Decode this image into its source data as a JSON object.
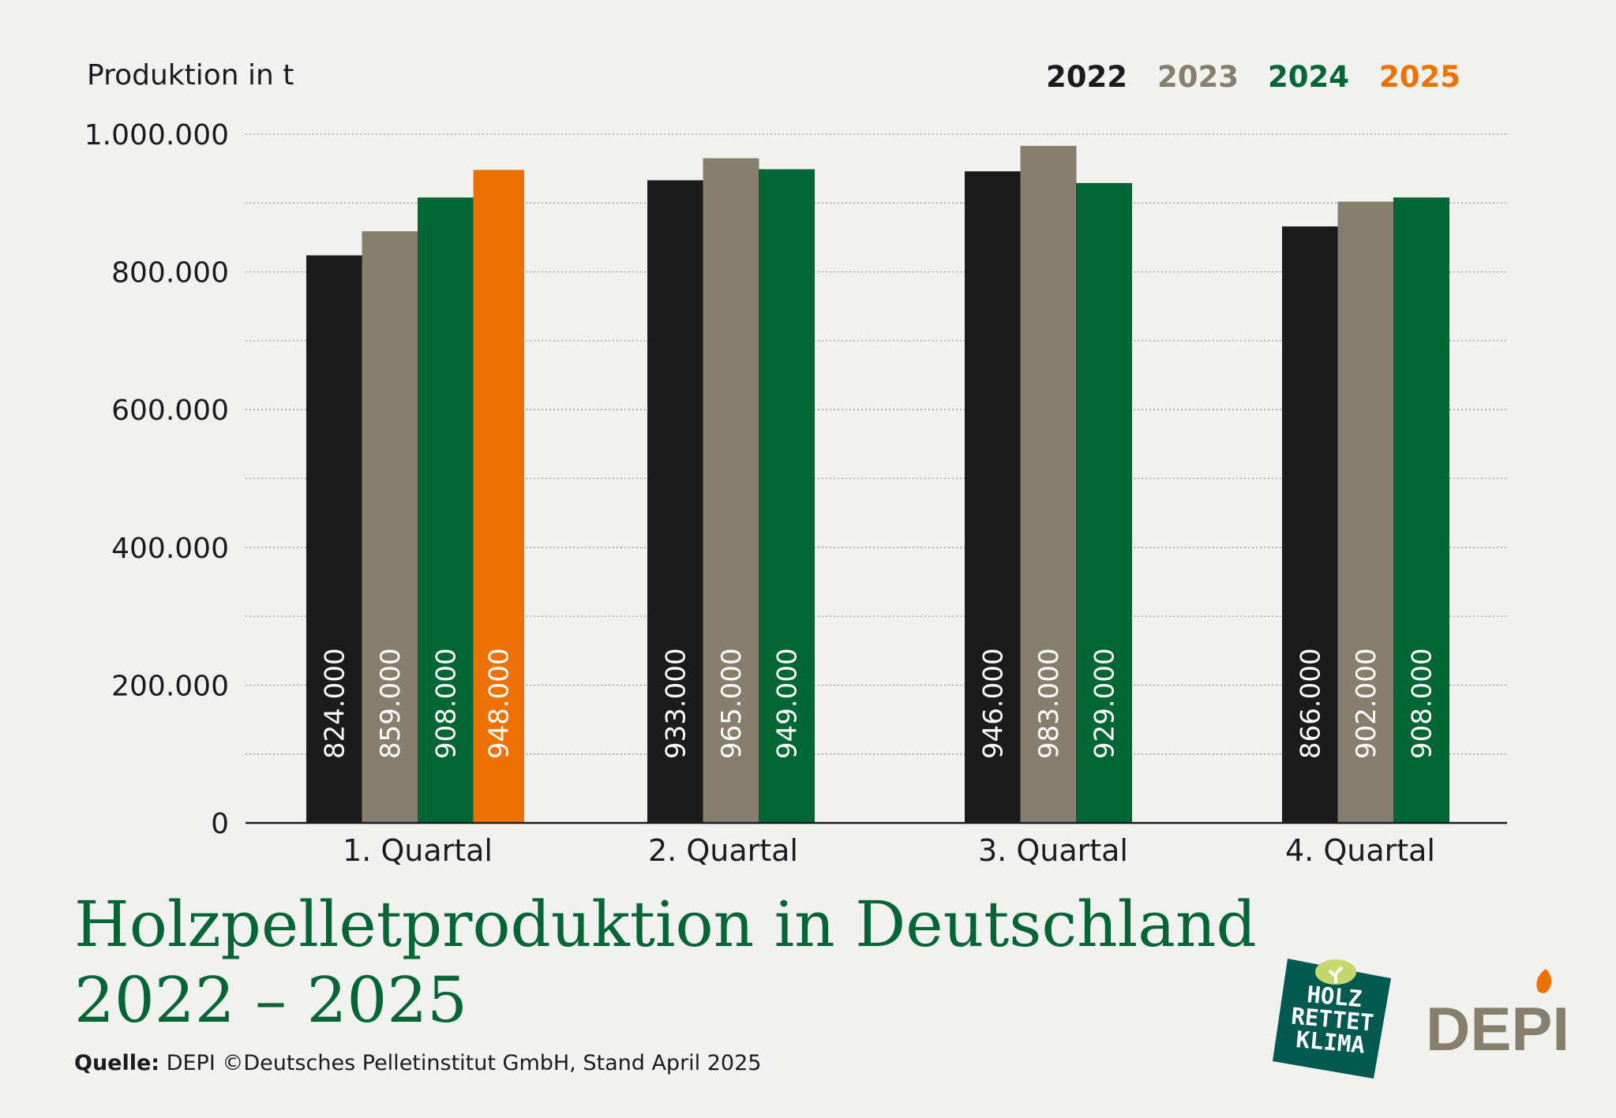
{
  "chart_data": {
    "type": "bar",
    "title": "Holzpelletproduktion in Deutschland",
    "subtitle": "2022 – 2025",
    "ylabel": "Produktion in t",
    "xlabel": "",
    "ylim": [
      0,
      1000000
    ],
    "y_ticks": [
      "0",
      "200.000",
      "400.000",
      "600.000",
      "800.000",
      "1.000.000"
    ],
    "y_tick_values": [
      0,
      200000,
      400000,
      600000,
      800000,
      1000000
    ],
    "grid": "horizontal dotted every 100.000",
    "legend_position": "top-right",
    "categories": [
      "1. Quartal",
      "2. Quartal",
      "3. Quartal",
      "4. Quartal"
    ],
    "series": [
      {
        "name": "2022",
        "color": "#1b1b1b",
        "values": [
          824000,
          933000,
          946000,
          866000
        ],
        "labels": [
          "824.000",
          "933.000",
          "946.000",
          "866.000"
        ]
      },
      {
        "name": "2023",
        "color": "#877f6e",
        "values": [
          859000,
          965000,
          983000,
          902000
        ],
        "labels": [
          "859.000",
          "965.000",
          "983.000",
          "902.000"
        ]
      },
      {
        "name": "2024",
        "color": "#006633",
        "values": [
          908000,
          949000,
          929000,
          908000
        ],
        "labels": [
          "908.000",
          "949.000",
          "929.000",
          "908.000"
        ]
      },
      {
        "name": "2025",
        "color": "#ed7203",
        "values": [
          948000,
          null,
          null,
          null
        ],
        "labels": [
          "948.000",
          null,
          null,
          null
        ]
      }
    ]
  },
  "footer": {
    "source_label": "Quelle:",
    "source_text": " DEPI  ©Deutsches Pelletinstitut GmbH, Stand April 2025"
  },
  "logos": {
    "holz_rettet_klima": [
      "HOLZ",
      "RETTET",
      "KLIMA"
    ],
    "depi": "DEPI"
  },
  "colors": {
    "background": "#f1f2ef",
    "title": "#066535",
    "logo_green": "#02594f",
    "logo_leaf": "#c5d86d"
  }
}
